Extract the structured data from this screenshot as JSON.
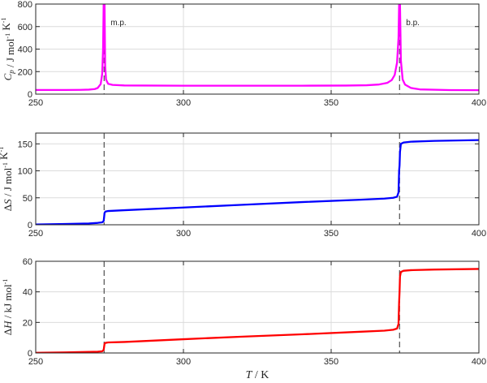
{
  "chart_data": [
    {
      "type": "line",
      "panel": "heat-capacity",
      "ylabel": "Cp / J mol⁻¹ K⁻¹",
      "xlim": [
        250,
        400
      ],
      "ylim": [
        0,
        800
      ],
      "xticks": [
        250,
        300,
        350,
        400
      ],
      "yticks": [
        0,
        200,
        400,
        600,
        800
      ],
      "grid": true,
      "color": "#ff00ff",
      "transitions": [
        {
          "x": 273.15,
          "label": "m.p."
        },
        {
          "x": 373.15,
          "label": "b.p."
        }
      ],
      "series": [
        {
          "x": [
            250,
            255,
            260,
            265,
            268,
            270,
            271,
            272,
            272.5,
            272.8,
            273.0,
            273.15,
            273.3,
            273.5,
            273.8,
            274.5,
            276,
            280,
            300,
            320,
            340,
            355,
            362,
            366,
            369,
            370.5,
            371.5,
            372.3,
            372.8,
            373.0,
            373.15,
            373.3,
            373.6,
            374.2,
            375,
            377,
            380,
            390,
            400
          ],
          "values": [
            37,
            37,
            37,
            38,
            40,
            45,
            55,
            90,
            180,
            400,
            800,
            800,
            800,
            250,
            130,
            92,
            82,
            77,
            75,
            75,
            75,
            76,
            79,
            85,
            100,
            125,
            170,
            280,
            500,
            800,
            800,
            800,
            300,
            130,
            85,
            55,
            42,
            36,
            35
          ]
        }
      ]
    },
    {
      "type": "line",
      "panel": "entropy-change",
      "ylabel": "ΔS / J mol⁻¹ K⁻¹",
      "xlim": [
        250,
        400
      ],
      "ylim": [
        0,
        170
      ],
      "xticks": [
        250,
        300,
        350,
        400
      ],
      "yticks": [
        0,
        50,
        100,
        150
      ],
      "grid": true,
      "color": "#0000ff",
      "transitions": [
        {
          "x": 273.15
        },
        {
          "x": 373.15
        }
      ],
      "series": [
        {
          "x": [
            250,
            260,
            268,
            271,
            272.5,
            273.0,
            273.15,
            273.3,
            273.6,
            274.5,
            280,
            300,
            320,
            340,
            360,
            368,
            371,
            372.3,
            372.8,
            373.0,
            373.15,
            373.3,
            373.6,
            374.5,
            377,
            385,
            400
          ],
          "values": [
            0.5,
            1.5,
            2.5,
            3.5,
            4.5,
            7,
            14,
            22,
            24.5,
            25.5,
            27,
            32,
            37,
            42,
            46.5,
            48.5,
            50,
            52,
            60,
            100,
            110,
            135,
            150,
            152.5,
            154,
            155.5,
            157
          ]
        }
      ]
    },
    {
      "type": "line",
      "panel": "enthalpy-change",
      "ylabel": "ΔH / kJ mol⁻¹",
      "xlabel": "T / K",
      "xlim": [
        250,
        400
      ],
      "ylim": [
        0,
        60
      ],
      "xticks": [
        250,
        300,
        350,
        400
      ],
      "yticks": [
        0,
        20,
        40,
        60
      ],
      "grid": true,
      "color": "#ff0000",
      "transitions": [
        {
          "x": 273.15
        },
        {
          "x": 373.15
        }
      ],
      "series": [
        {
          "x": [
            250,
            260,
            268,
            271,
            272.5,
            273.0,
            273.15,
            273.3,
            273.6,
            274.5,
            280,
            300,
            320,
            340,
            360,
            368,
            371,
            372.3,
            372.8,
            373.0,
            373.15,
            373.3,
            373.6,
            374.5,
            377,
            385,
            400
          ],
          "values": [
            0.1,
            0.4,
            0.7,
            0.85,
            1.1,
            2,
            4,
            6,
            6.6,
            6.9,
            7.2,
            9,
            10.7,
            12.2,
            13.9,
            14.6,
            15.2,
            16,
            19,
            33,
            40,
            50,
            53,
            53.8,
            54.2,
            54.6,
            55
          ]
        }
      ]
    }
  ]
}
